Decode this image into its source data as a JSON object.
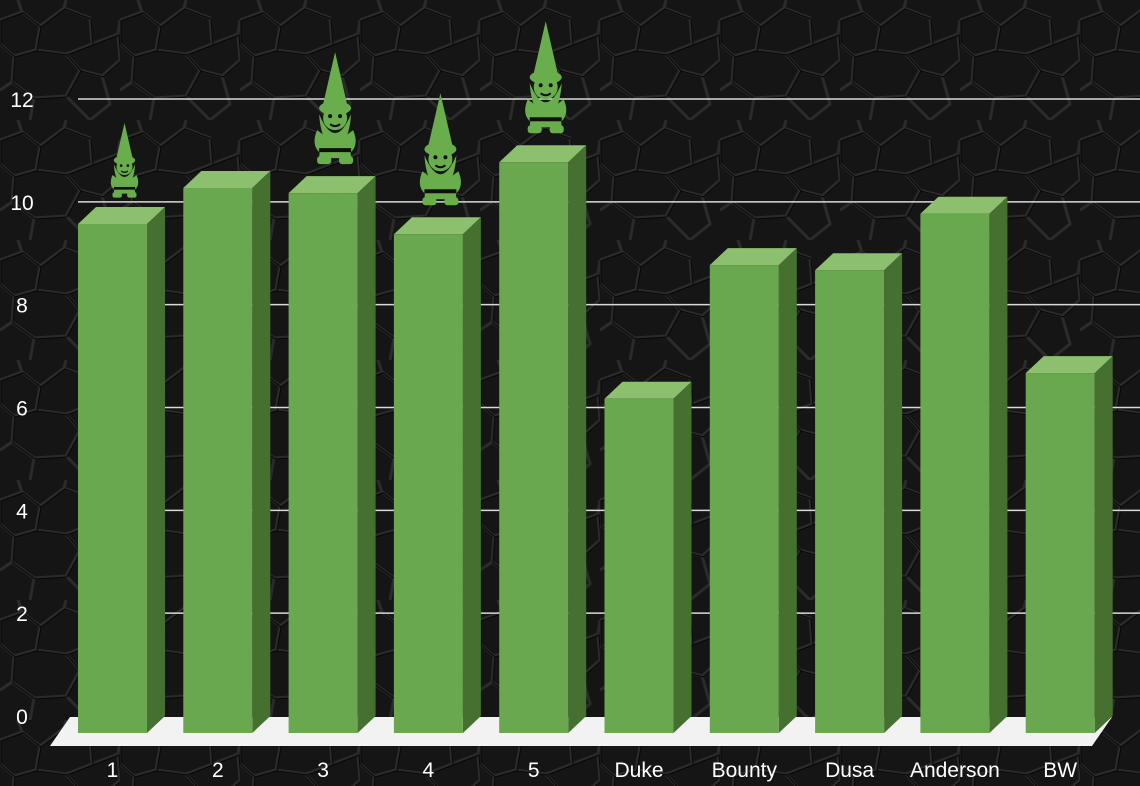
{
  "chart_data": {
    "type": "bar",
    "categories": [
      "1",
      "2",
      "3",
      "4",
      "5",
      "Duke",
      "Bounty",
      "Dusa",
      "Anderson",
      "BW"
    ],
    "values": [
      9.9,
      10.6,
      10.5,
      9.7,
      11.1,
      6.5,
      9.1,
      9.0,
      10.1,
      7.0
    ],
    "gnome_markers": [
      {
        "category": "1",
        "icon": "gnome-icon"
      },
      {
        "category": "3",
        "icon": "gnome-icon"
      },
      {
        "category": "4",
        "icon": "gnome-icon"
      },
      {
        "category": "5",
        "icon": "gnome-icon"
      }
    ],
    "title": "",
    "xlabel": "",
    "ylabel": "",
    "ylim": [
      0,
      12
    ],
    "yticks": [
      "0",
      "2",
      "4",
      "6",
      "8",
      "10",
      "12"
    ],
    "grid": true,
    "legend": "none",
    "colors": {
      "bar_front": "#6aa84f",
      "bar_top": "#8cc06e",
      "bar_side": "#46702f",
      "gnome": "#69ad4d",
      "floor": "#f2f2f2",
      "gridline": "#d9d9d9",
      "background": "#161616",
      "text": "#ffffff"
    }
  }
}
